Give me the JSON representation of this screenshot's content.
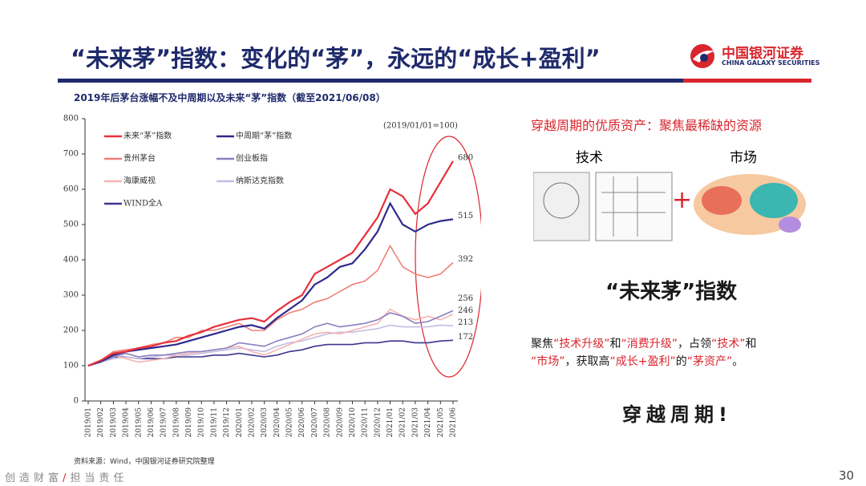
{
  "header": {
    "title": "“未来茅”指数：变化的“茅”，永远的“成长+盈利”",
    "logo_name": "中国银河证券",
    "logo_sub": "CHINA GALAXY SECURITIES"
  },
  "chart_data": {
    "type": "line",
    "title": "2019年后茅台涨幅不及中周期以及未来“茅”指数（截至2021/06/08）",
    "annotation": "(2019/01/01=100)",
    "categories": [
      "2019/01",
      "2019/02",
      "2019/03",
      "2019/04",
      "2019/05",
      "2019/06",
      "2019/07",
      "2019/08",
      "2019/09",
      "2019/10",
      "2019/11",
      "2019/12",
      "2020/01",
      "2020/02",
      "2020/03",
      "2020/04",
      "2020/05",
      "2020/06",
      "2020/07",
      "2020/08",
      "2020/09",
      "2020/10",
      "2020/11",
      "2020/12",
      "2021/01",
      "2021/02",
      "2021/03",
      "2021/04",
      "2021/05",
      "2021/06"
    ],
    "ylim": [
      0,
      800
    ],
    "yticks": [
      0,
      100,
      200,
      300,
      400,
      500,
      600,
      700,
      800
    ],
    "series": [
      {
        "name": "未来“茅”指数",
        "color": "#e8303a",
        "values": [
          100,
          115,
          135,
          140,
          150,
          155,
          165,
          170,
          185,
          195,
          210,
          220,
          230,
          235,
          225,
          255,
          280,
          300,
          360,
          380,
          400,
          420,
          470,
          520,
          600,
          580,
          530,
          560,
          620,
          680
        ]
      },
      {
        "name": "中周期“茅”指数",
        "color": "#2e2a8c",
        "values": [
          100,
          112,
          130,
          140,
          145,
          150,
          155,
          160,
          170,
          180,
          190,
          200,
          210,
          215,
          205,
          235,
          260,
          285,
          330,
          350,
          380,
          390,
          430,
          480,
          560,
          500,
          480,
          500,
          510,
          515
        ]
      },
      {
        "name": "贵州茅台",
        "color": "#f08078",
        "values": [
          100,
          115,
          140,
          145,
          150,
          160,
          165,
          180,
          180,
          200,
          200,
          210,
          220,
          200,
          200,
          230,
          250,
          260,
          280,
          290,
          310,
          330,
          340,
          370,
          440,
          380,
          360,
          350,
          360,
          392
        ]
      },
      {
        "name": "创业板指",
        "color": "#8a7fc0",
        "values": [
          100,
          110,
          125,
          135,
          125,
          130,
          130,
          135,
          140,
          140,
          145,
          150,
          165,
          160,
          155,
          170,
          180,
          190,
          210,
          220,
          210,
          215,
          220,
          230,
          250,
          240,
          220,
          225,
          240,
          256
        ]
      },
      {
        "name": "海康威视",
        "color": "#f5b3b0",
        "values": [
          100,
          115,
          130,
          120,
          110,
          115,
          120,
          130,
          135,
          140,
          145,
          150,
          155,
          140,
          130,
          145,
          160,
          175,
          190,
          195,
          190,
          200,
          210,
          220,
          260,
          240,
          230,
          240,
          230,
          246
        ]
      },
      {
        "name": "纳斯达克指数",
        "color": "#c4bde2",
        "values": [
          100,
          110,
          120,
          125,
          120,
          125,
          130,
          130,
          130,
          135,
          140,
          145,
          150,
          145,
          140,
          155,
          165,
          170,
          180,
          190,
          195,
          195,
          200,
          205,
          215,
          210,
          210,
          210,
          215,
          213
        ]
      },
      {
        "name": "WIND全A",
        "color": "#3b3590",
        "values": [
          100,
          110,
          125,
          125,
          120,
          120,
          120,
          125,
          125,
          125,
          130,
          130,
          135,
          130,
          125,
          130,
          140,
          145,
          155,
          160,
          160,
          160,
          165,
          165,
          170,
          170,
          165,
          165,
          170,
          172
        ]
      }
    ],
    "source": "资料来源：Wind，中国银河证券研究院整理"
  },
  "right_panel": {
    "heading": "穿越周期的优质资产：聚焦最稀缺的资源",
    "tech": "技术",
    "market": "市场",
    "plus": "+",
    "index_name": "“未来茅”指数",
    "description": [
      "聚焦",
      "“技术升级”",
      "和",
      "“消费升级”",
      "，占领",
      "“技术”",
      "和",
      "“市场”",
      "，获取高",
      "“成长+盈利”",
      "的",
      "“茅资产”",
      "。"
    ],
    "slogan": "穿越周期!"
  },
  "footer": {
    "motto_a": "创造财富",
    "slash": "/",
    "motto_b": "担当责任",
    "page": "30"
  }
}
